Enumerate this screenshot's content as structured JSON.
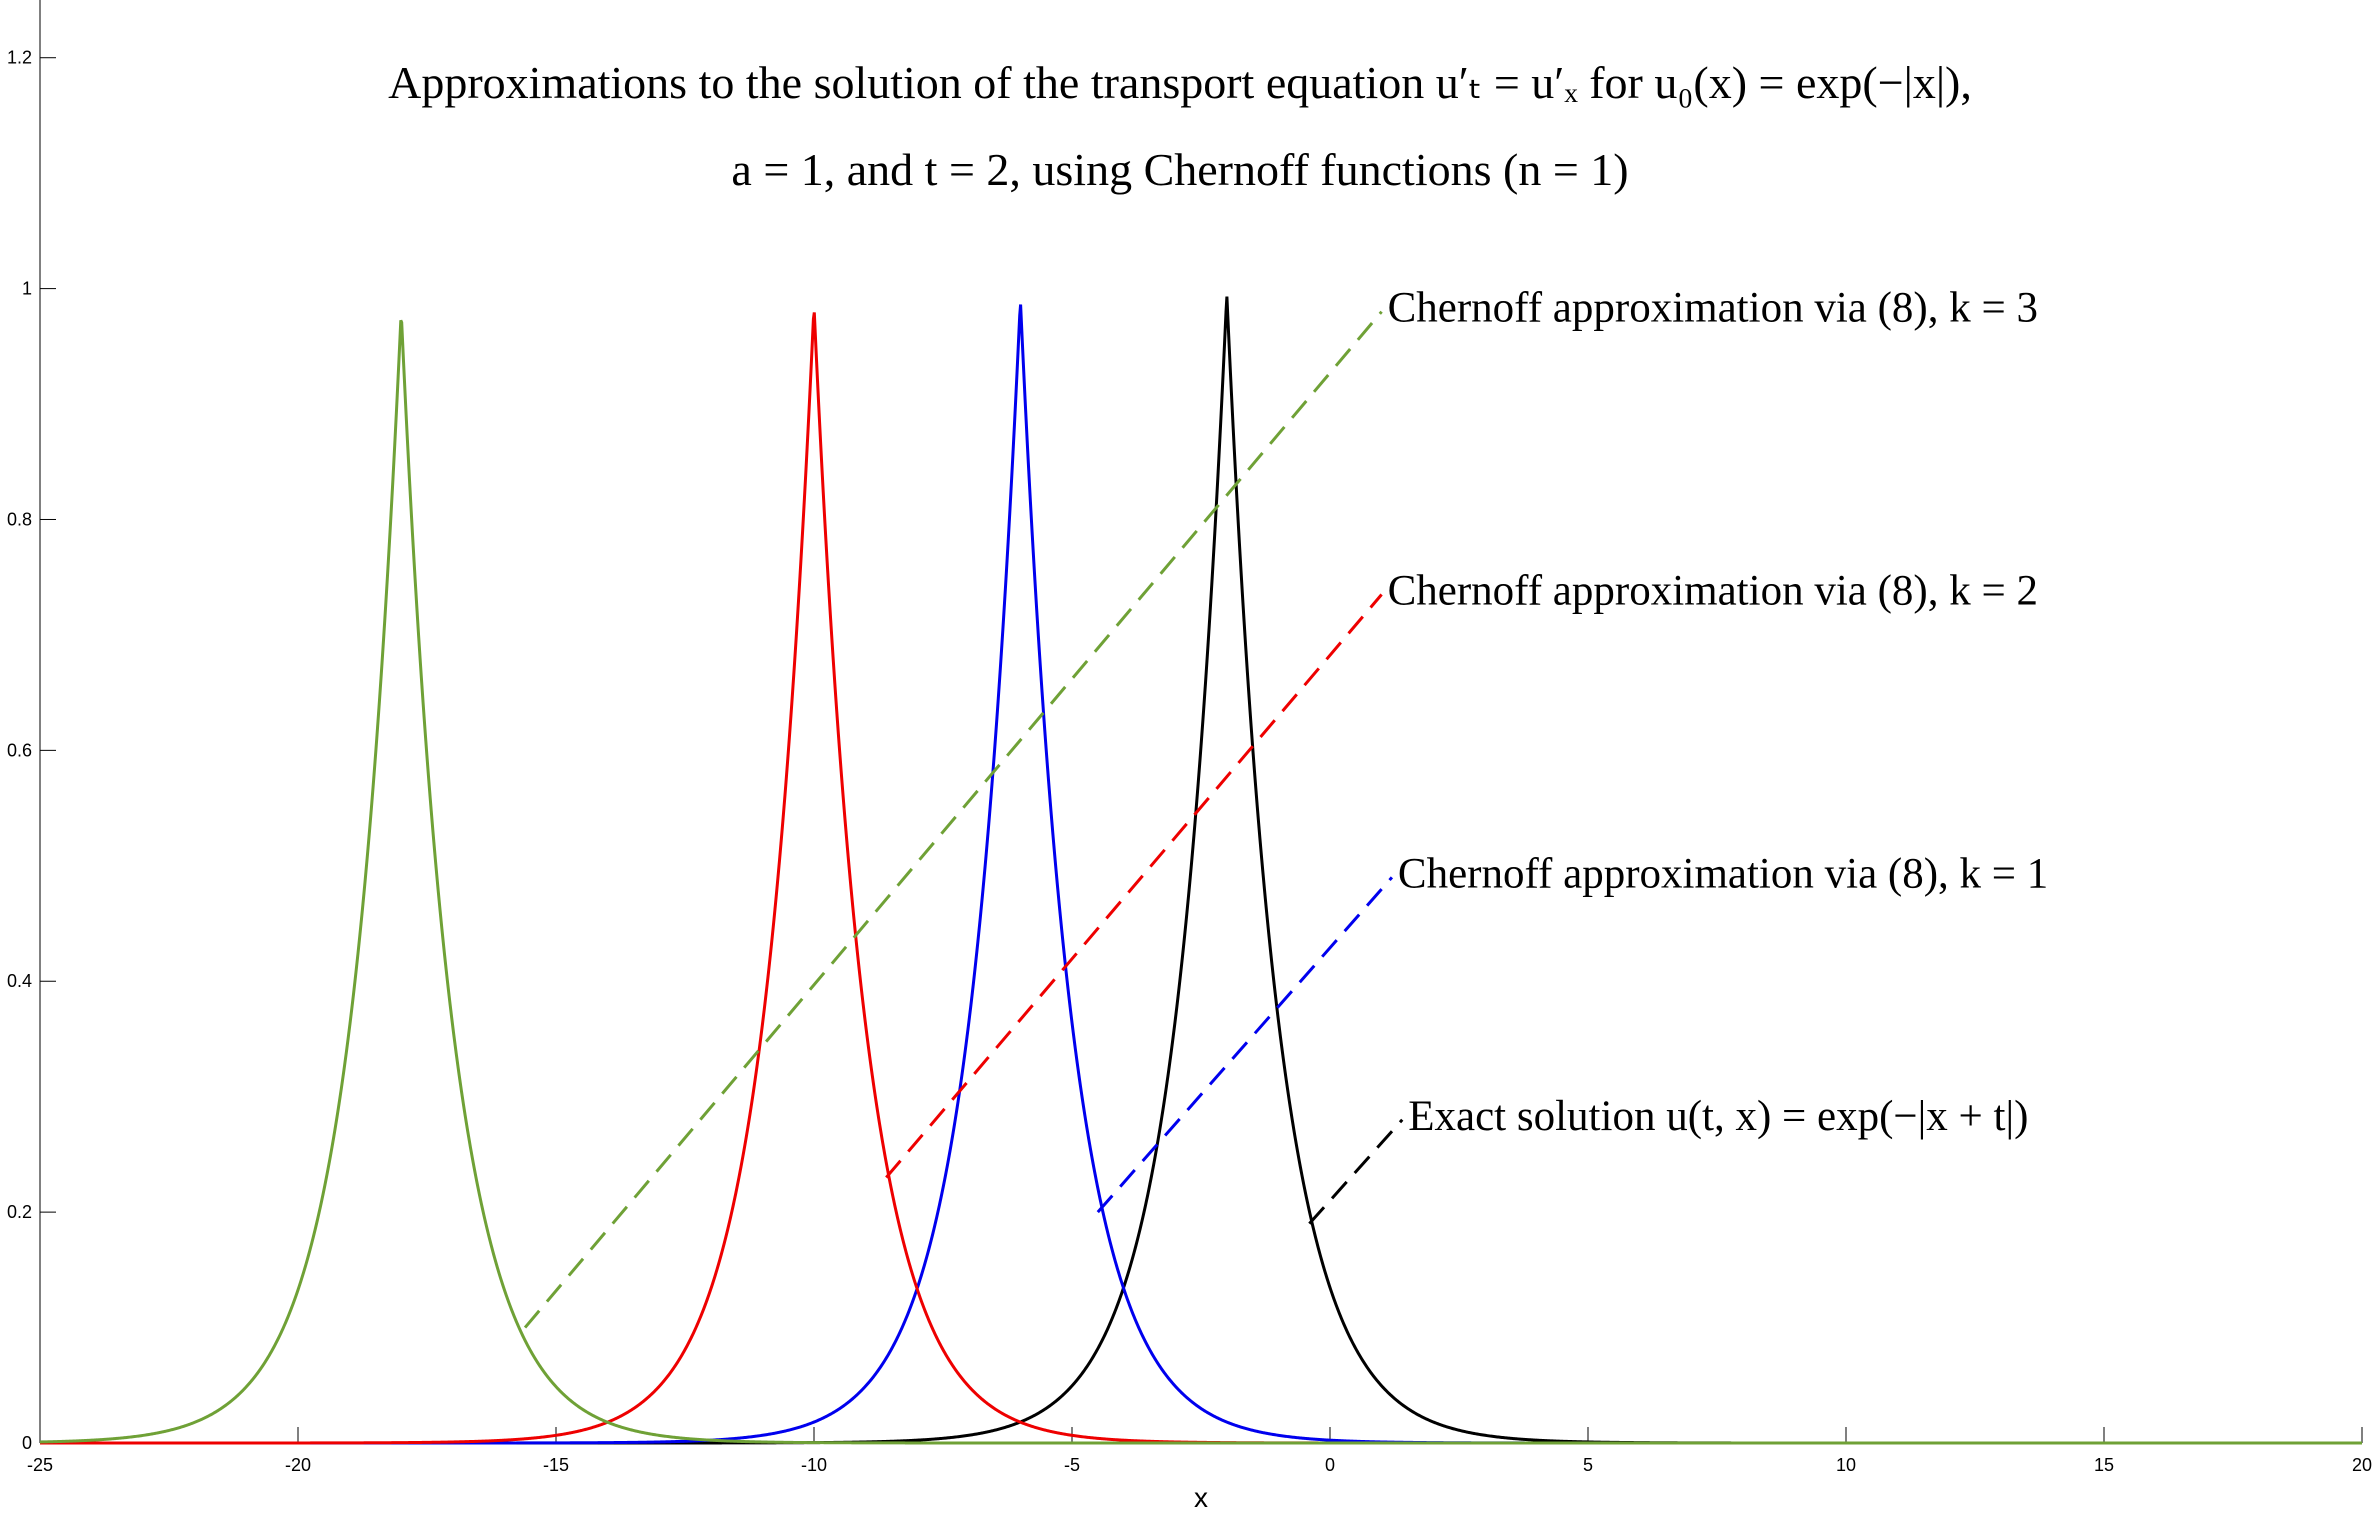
{
  "chart_data": {
    "type": "line",
    "title_lines": [
      "Approximations to the solution of the transport equation u′ₜ = u′ₓ for u₀(x) = exp(−|x|),",
      "a = 1, and t = 2, using Chernoff functions (n = 1)"
    ],
    "xlabel": "x",
    "ylabel": "",
    "xlim": [
      -25,
      20
    ],
    "ylim": [
      0,
      1.25
    ],
    "x_ticks": [
      -25,
      -20,
      -15,
      -10,
      -5,
      0,
      5,
      10,
      15,
      20
    ],
    "y_ticks": [
      0,
      0.2,
      0.4,
      0.6,
      0.8,
      1,
      1.2
    ],
    "grid": false,
    "series": [
      {
        "center": -2,
        "peak": 0.995,
        "width": 1.0,
        "color": "#000000"
      },
      {
        "center": -6,
        "peak": 0.99,
        "width": 1.0,
        "color": "#0000ee"
      },
      {
        "center": -10,
        "peak": 0.985,
        "width": 1.0,
        "color": "#ee0000"
      },
      {
        "center": -18,
        "peak": 0.98,
        "width": 1.0,
        "color": "#6fa136"
      }
    ],
    "annotations": [
      {
        "text": "Chernoff approximation via (8), k = 3",
        "color": "#6fa136",
        "from": [
          -15.6,
          0.1
        ],
        "to": [
          1.0,
          0.98
        ]
      },
      {
        "text": "Chernoff approximation via (8), k = 2",
        "color": "#ee0000",
        "from": [
          -8.6,
          0.23
        ],
        "to": [
          1.0,
          0.735
        ]
      },
      {
        "text": "Chernoff approximation via (8), k = 1",
        "color": "#0000ee",
        "from": [
          -4.5,
          0.2
        ],
        "to": [
          1.2,
          0.49
        ]
      },
      {
        "text": "Exact solution u(t, x) = exp(−|x + t|)",
        "color": "#000000",
        "from": [
          -0.4,
          0.19
        ],
        "to": [
          1.4,
          0.28
        ]
      }
    ]
  }
}
